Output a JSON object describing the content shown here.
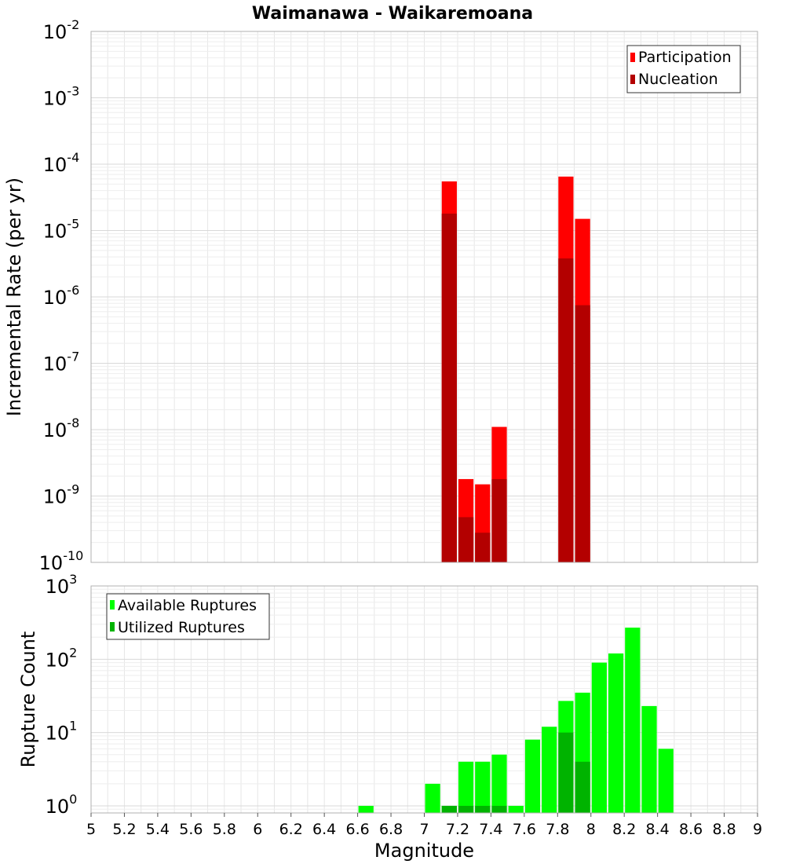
{
  "title": "Waimanawa - Waikaremoana",
  "chart_data": [
    {
      "type": "bar",
      "panel": "top",
      "ylabel": "Incremental Rate (per yr)",
      "yscale": "log",
      "ylim": [
        1e-10,
        0.01
      ],
      "xlim": [
        5,
        9
      ],
      "bin_width": 0.1,
      "grid": true,
      "legend_position": "top-right",
      "y_tick_labels": [
        {
          "base": "10",
          "exp": "-2",
          "value": 0.01
        },
        {
          "base": "10",
          "exp": "-3",
          "value": 0.001
        },
        {
          "base": "10",
          "exp": "-4",
          "value": 0.0001
        },
        {
          "base": "10",
          "exp": "-5",
          "value": 1e-05
        },
        {
          "base": "10",
          "exp": "-6",
          "value": 1e-06
        },
        {
          "base": "10",
          "exp": "-7",
          "value": 1e-07
        },
        {
          "base": "10",
          "exp": "-8",
          "value": 1e-08
        },
        {
          "base": "10",
          "exp": "-9",
          "value": 1e-09
        },
        {
          "base": "10",
          "exp": "-10",
          "value": 1e-10
        }
      ],
      "series": [
        {
          "name": "Participation",
          "color": "#ff0000",
          "x": [
            7.15,
            7.25,
            7.35,
            7.45,
            7.85,
            7.95
          ],
          "values": [
            5.5e-05,
            1.8e-09,
            1.5e-09,
            1.1e-08,
            6.5e-05,
            1.5e-05
          ]
        },
        {
          "name": "Nucleation",
          "color": "#b30000",
          "x": [
            7.15,
            7.25,
            7.35,
            7.45,
            7.85,
            7.95
          ],
          "values": [
            1.8e-05,
            4.8e-10,
            2.8e-10,
            1.8e-09,
            3.8e-06,
            7.5e-07
          ]
        }
      ]
    },
    {
      "type": "bar",
      "panel": "bottom",
      "xlabel": "Magnitude",
      "ylabel": "Rupture Count",
      "yscale": "log",
      "ylim": [
        0.8,
        1000
      ],
      "xlim": [
        5,
        9
      ],
      "bin_width": 0.1,
      "grid": true,
      "legend_position": "top-left",
      "x_tick_labels": [
        "5",
        "5.2",
        "5.4",
        "5.6",
        "5.8",
        "6",
        "6.2",
        "6.4",
        "6.6",
        "6.8",
        "7",
        "7.2",
        "7.4",
        "7.6",
        "7.8",
        "8",
        "8.2",
        "8.4",
        "8.6",
        "8.8",
        "9"
      ],
      "y_tick_labels": [
        {
          "base": "10",
          "exp": "3",
          "value": 1000
        },
        {
          "base": "10",
          "exp": "2",
          "value": 100
        },
        {
          "base": "10",
          "exp": "1",
          "value": 10
        },
        {
          "base": "10",
          "exp": "0",
          "value": 1
        }
      ],
      "series": [
        {
          "name": "Available Ruptures",
          "color": "#00ff00",
          "x": [
            6.65,
            7.05,
            7.15,
            7.25,
            7.35,
            7.45,
            7.55,
            7.65,
            7.75,
            7.85,
            7.95,
            8.05,
            8.15,
            8.25,
            8.35,
            8.45
          ],
          "values": [
            1,
            2,
            1,
            4,
            4,
            5,
            1,
            8,
            12,
            27,
            35,
            90,
            120,
            270,
            23,
            6
          ]
        },
        {
          "name": "Utilized Ruptures",
          "color": "#00b300",
          "x": [
            7.15,
            7.25,
            7.35,
            7.45,
            7.85,
            7.95
          ],
          "values": [
            1,
            1,
            1,
            1,
            10,
            4
          ]
        }
      ]
    }
  ]
}
